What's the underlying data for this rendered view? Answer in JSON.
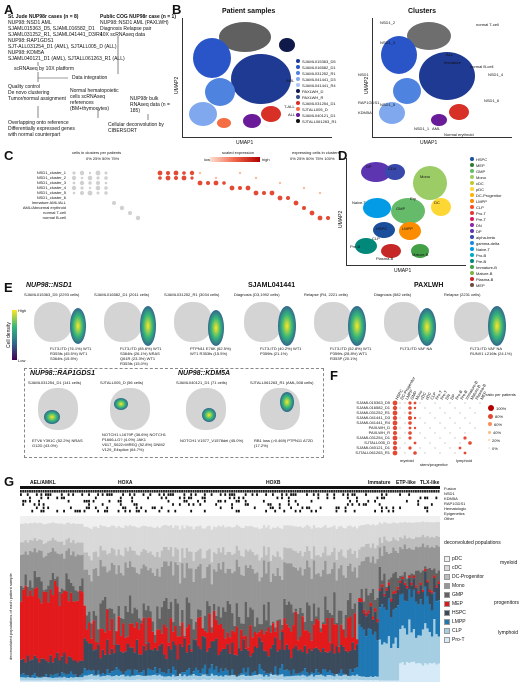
{
  "panels": {
    "A": {
      "label": "A",
      "st_jude_title": "St. Jude NUP98r cases (n = 8)",
      "st_jude_lines": [
        "NUP98::NSD1 AML",
        "SJAML015363_D5, SJAML016582_D1",
        "SJAML031252_R1, SJAML041441_D3/R4",
        "NUP98::RAP1GDS1",
        "SJT-ALL031254_D1 (AML), SJTALL005_D (ALL)",
        "NUP98::KDM5A",
        "SJAML040121_D1 (AML), SJTALL061263_R1 (ALL)"
      ],
      "cog_title": "Public COG NUP98r case (n = 1)",
      "cog_lines": [
        "NUP98::NSD1 AML (PAXLWH)",
        "Diagnosis Relapse pair",
        "10X scRNAseq data"
      ],
      "scrna_label": "scRNAseq by 10X platform",
      "integration_label": "Data integration",
      "left_steps": [
        "Quality control",
        "De novo clustering",
        "Tumor/normal assignment"
      ],
      "normal_ref": "Normal hematopoietic cells scRNAseq references (BM+thymocytes)",
      "bulk_label": "NUP98r bulk RNAseq data (n = 185)",
      "bottom_left": [
        "Overlapping onto reference",
        "Differentially expressed genes",
        "with normal counterpart"
      ],
      "bottom_right": [
        "Cellular deconvolution by",
        "CIBERSORT"
      ]
    },
    "B": {
      "label": "B",
      "left_title": "Patient samples",
      "right_title": "Clusters",
      "axis_x": "UMAP1",
      "axis_y": "UMAP2",
      "samples": [
        {
          "name": "SJAML015363_D5",
          "color": "#1f3a93"
        },
        {
          "name": "SJAML016582_D1",
          "color": "#2a55c8"
        },
        {
          "name": "SJAML031252_R1",
          "color": "#4f83e0"
        },
        {
          "name": "SJAML041441_D3",
          "color": "#7fa8ee"
        },
        {
          "name": "SJAML041441_R4",
          "color": "#a9c5f3"
        },
        {
          "name": "PAXLWH_D",
          "color": "#101a4a"
        },
        {
          "name": "PAXLWH_R",
          "color": "#3b4b8c"
        },
        {
          "name": "SJAML031254_D1",
          "color": "#d73027"
        },
        {
          "name": "SJTALL005_D",
          "color": "#f46d43"
        },
        {
          "name": "SJAML040121_D1",
          "color": "#6a1b9a"
        },
        {
          "name": "SJTALL061263_R1",
          "color": "#111111"
        }
      ],
      "group_labels": {
        "nsd1": "NSD1",
        "rap1gds1": "RAP1GDS1",
        "kdm5a": "KDM5A"
      },
      "side_labels": {
        "aml": "AML",
        "tall": "T-ALL",
        "all": "ALL"
      },
      "cluster_labels": [
        "NSD1_2",
        "normal T-cell",
        "NSD1_3",
        "ALL",
        "Immature",
        "NSD1_4",
        "normal B-cell",
        "NSD1_6",
        "NSD1_5",
        "NSD1_1",
        "AML",
        "Normal erythroid"
      ]
    },
    "C": {
      "label": "C",
      "legend_pct_title": "cells in clusters per patients",
      "legend_pct": [
        "0%",
        "25%",
        "50%",
        "75%"
      ],
      "legend_expr_title": "scaled expression",
      "legend_expr_low": "low",
      "legend_expr_high": "high",
      "legend_cells_title": "expressing cells in clusters",
      "legend_cells": [
        "0%",
        "25%",
        "50%",
        "75%",
        "100%"
      ],
      "rows": [
        "NSD1_cluster_1",
        "NSD1_cluster_2",
        "NSD1_cluster_3",
        "NSD1_cluster_4",
        "NSD1_cluster_5",
        "NSD1_cluster_6",
        "Immature AML/ALL",
        "AML/Abnormal erythroid",
        "normal T-cell",
        "normal B-cell"
      ]
    },
    "D": {
      "label": "D",
      "axis_x": "UMAP1",
      "axis_y": "UMAP2",
      "map_labels": [
        "DP",
        "CD4",
        "Mono",
        "DC",
        "GMP",
        "Ery",
        "HSPC",
        "Naive-T",
        "LMPP",
        "CLP",
        "Pre-B",
        "Plasma-B",
        "Mature-B"
      ],
      "legend": [
        {
          "name": "HSPC",
          "color": "#1b4f9c"
        },
        {
          "name": "MEP",
          "color": "#2e7d32"
        },
        {
          "name": "GMP",
          "color": "#66bb6a"
        },
        {
          "name": "Mono",
          "color": "#9ccc65"
        },
        {
          "name": "cDC",
          "color": "#c0ca33"
        },
        {
          "name": "pDC",
          "color": "#fdd835"
        },
        {
          "name": "DC-Progenitor",
          "color": "#ffb300"
        },
        {
          "name": "LMPP",
          "color": "#fb8c00"
        },
        {
          "name": "CLP",
          "color": "#f4511e"
        },
        {
          "name": "Pro-T",
          "color": "#e53935"
        },
        {
          "name": "Pre-T",
          "color": "#d81b60"
        },
        {
          "name": "DN",
          "color": "#8e24aa"
        },
        {
          "name": "DP",
          "color": "#5e35b1"
        },
        {
          "name": "alpha-beta",
          "color": "#3949ab"
        },
        {
          "name": "gamma-delta",
          "color": "#1e88e5"
        },
        {
          "name": "Naive-T",
          "color": "#039be5"
        },
        {
          "name": "Pro-B",
          "color": "#00acc1"
        },
        {
          "name": "Pre-B",
          "color": "#00897b"
        },
        {
          "name": "Immature-B",
          "color": "#43a047"
        },
        {
          "name": "Mature-B",
          "color": "#7cb342"
        },
        {
          "name": "Plasma-B",
          "color": "#c62828"
        },
        {
          "name": "MEP",
          "color": "#6d4c41"
        }
      ]
    },
    "E": {
      "label": "E",
      "row1_titles": [
        "NUP98::NSD1",
        "SJAML041441",
        "PAXLWH"
      ],
      "row1_samples": [
        "SJAML015363_D5 (2293 cells)",
        "SJAML016582_D1 (2011 cells)",
        "SJAML031252_R1 (3034 cells)",
        "Diagnosis (D3,1992 cells)",
        "Relapse (R4, 2221 cells)",
        "Diagnosis (582 cells)",
        "Relapse (2231 cells)"
      ],
      "row1_mut": [
        "FLT3-ITD (76.1%) WT1 R353fs (45.5%) WT1 S364fs (15.5%)",
        "FLT3-ITD (85.6%) WT1 S364fs (26.1%) NRAS Q61R (23.3%) WT1 R353fs (15.0%)",
        "PTPN11 E76K (62.5%) WT1 R353fs (15.5%)",
        "FLT3-ITD (40.2%) WT1 P359fs (21.1%)",
        "FLT3-ITD (52.8%) WT1 P359fs (28.8%) WT1 R353P (20.1%)",
        "FLT3-ITD VAF NA",
        "FLT3-ITD VAF NA RUNX1 L216fs (24.1%)"
      ],
      "colorbar_title": "Cell density",
      "colorbar_high": "High",
      "colorbar_low": "Low",
      "row2_titles": [
        "NUP98::RAP1GDS1",
        "NUP98::KDM5A"
      ],
      "row2_samples": [
        "SJAML031254_D1 (141 cells)",
        "SJTALL005_D (56 cells)",
        "SJAML040121_D1 (71 cells)",
        "SJTALL061263_R1 (AML,508 cells)"
      ],
      "row2_mut": [
        "ETV6 Y391C (52.2%) NRAS G12D (43.0%)",
        "NOTCH1 L1679P (36.6%) NOTCH1 P1666-LG? (4.0%) JAK1 V617_S622>MREQ (52.8%) DNM2 V129_E4splice (64.7%)",
        "NOTCH1 V1577_V1578del (45.0%)",
        "RB1 loss (>0.469) PTPN11 A72D (17.2%)"
      ]
    },
    "F": {
      "label": "F",
      "rows": [
        "SJAML015363_D5",
        "SJAML016582_D1",
        "SJAML031252_R1",
        "SJAML041441_D3",
        "SJAML041441_R4",
        "PAXLWH_D",
        "PAXLWH_R",
        "SJAML031254_D1",
        "SJTALL005_D",
        "SJAML040121_D1",
        "SJTALL061263_R1"
      ],
      "cols": [
        "HSPC",
        "DC-Progenitor",
        "LMPP",
        "GMP",
        "Mono",
        "cDC",
        "pDC",
        "CLP",
        "Pro-T",
        "Pre-T",
        "DN",
        "DP",
        "Pro-B",
        "Pre-B",
        "Immature-B",
        "Mature-B",
        "Plasma-B",
        "MEP"
      ],
      "groups": [
        "myeloid",
        "stem/progenitor",
        "lymphoid"
      ],
      "legend_title": "ratio per patients",
      "legend": [
        "100%",
        "80%",
        "60%",
        "40%",
        "20%",
        "0%"
      ]
    },
    "G": {
      "label": "G",
      "top_groups": [
        "AEL/AMKL",
        "HOXA",
        "HOXB",
        "Immature",
        "ETP-like",
        "TLX-like"
      ],
      "annot_rows": [
        "Fusion",
        "NSD1",
        "KDM5A",
        "RAP1GDS1",
        "Hematologic",
        "Epigenetics",
        "Other"
      ],
      "ylabel": "deconvoluted populations of each patient sample",
      "legend_title": "deconvoluted populations",
      "legend": [
        {
          "name": "pDC",
          "color": "#f0f0f0"
        },
        {
          "name": "cDC",
          "color": "#d9d9d9"
        },
        {
          "name": "DC-Progenitor",
          "color": "#bdbdbd"
        },
        {
          "name": "Mono",
          "color": "#969696"
        },
        {
          "name": "GMP",
          "color": "#636363"
        },
        {
          "name": "MEP",
          "color": "#e31a1c"
        },
        {
          "name": "HSPC",
          "color": "#3b4b5c"
        },
        {
          "name": "LMPP",
          "color": "#1f78b4"
        },
        {
          "name": "CLP",
          "color": "#a6cee3"
        },
        {
          "name": "Pro-T",
          "color": "#d6eaf8"
        }
      ],
      "groups": [
        "myeloid",
        "progenitors",
        "lymphoid"
      ]
    }
  }
}
